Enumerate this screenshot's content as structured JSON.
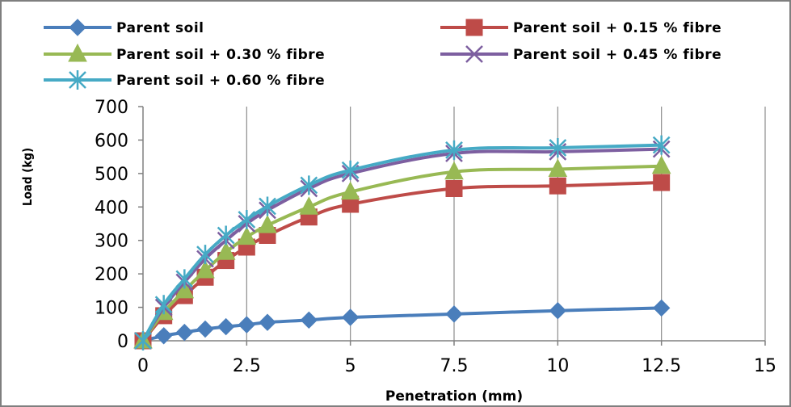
{
  "chart_data": {
    "type": "line",
    "xlabel": "Penetration (mm)",
    "ylabel": "Load (kg)",
    "xlim": [
      0,
      15
    ],
    "ylim": [
      0,
      700
    ],
    "xticks": [
      0,
      2.5,
      5,
      7.5,
      10,
      12.5,
      15
    ],
    "yticks": [
      0,
      100,
      200,
      300,
      400,
      500,
      600,
      700
    ],
    "xtick_labels": [
      "0",
      "2.5",
      "5",
      "7.5",
      "10",
      "12.5",
      "15"
    ],
    "ytick_labels": [
      "0",
      "100",
      "200",
      "300",
      "400",
      "500",
      "600",
      "700"
    ],
    "grid": "vertical",
    "legend_position": "top",
    "x": [
      0,
      0.5,
      1,
      1.5,
      2,
      2.5,
      3,
      4,
      5,
      7.5,
      10,
      12.5
    ],
    "series": [
      {
        "name": "Parent soil",
        "color": "#4a7ebb",
        "marker": "diamond",
        "values": [
          0,
          15,
          25,
          35,
          42,
          48,
          55,
          62,
          70,
          80,
          90,
          98
        ]
      },
      {
        "name": "Parent soil + 0.15 % fibre",
        "color": "#be4b48",
        "marker": "square",
        "values": [
          0,
          75,
          135,
          190,
          240,
          280,
          315,
          370,
          408,
          455,
          463,
          473
        ]
      },
      {
        "name": "Parent soil + 0.30 % fibre",
        "color": "#98b954",
        "marker": "triangle",
        "values": [
          0,
          85,
          150,
          210,
          265,
          310,
          345,
          400,
          445,
          505,
          513,
          522
        ]
      },
      {
        "name": "Parent soil + 0.45 % fibre",
        "color": "#7d5fa0",
        "marker": "x",
        "values": [
          0,
          100,
          175,
          245,
          300,
          350,
          390,
          455,
          500,
          560,
          565,
          573
        ]
      },
      {
        "name": "Parent soil + 0.60 % fibre",
        "color": "#46aac5",
        "marker": "star",
        "values": [
          0,
          108,
          185,
          258,
          315,
          362,
          402,
          465,
          510,
          570,
          577,
          585
        ]
      }
    ]
  }
}
